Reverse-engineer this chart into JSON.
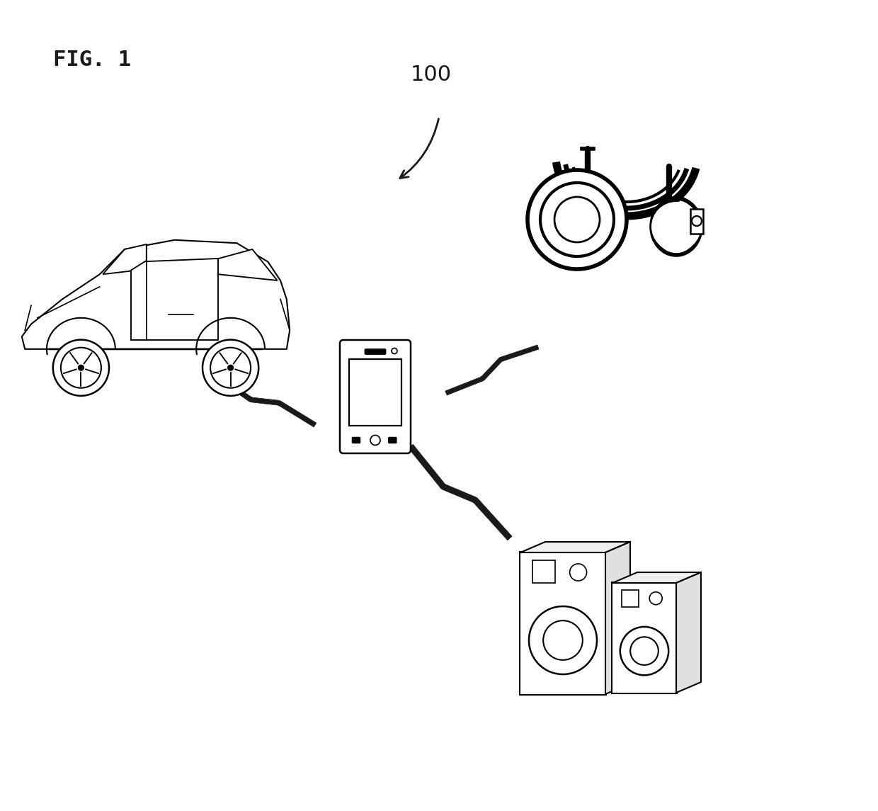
{
  "title": "FIG. 1",
  "label_100": "100",
  "bg_color": "#ffffff",
  "line_color": "#1a1a1a",
  "title_fontsize": 22,
  "label_fontsize": 22,
  "fig_width": 12.4,
  "fig_height": 11.45
}
